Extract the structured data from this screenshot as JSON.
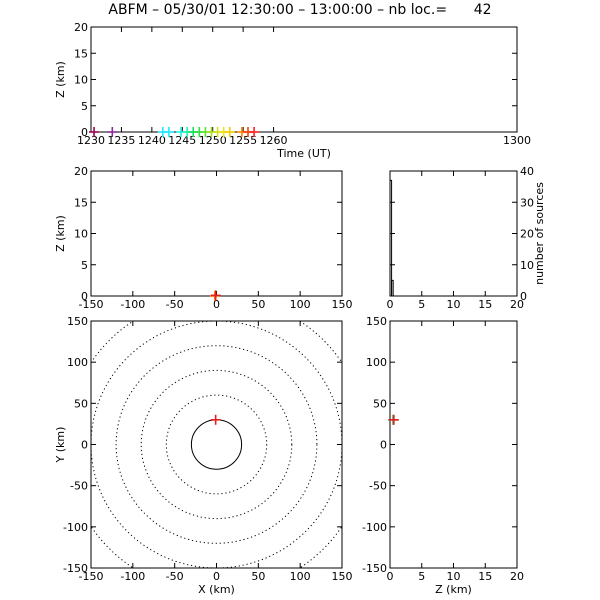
{
  "title": "ABFM – 05/30/01 12:30:00 – 13:00:00 – nb loc.=      42",
  "chart_data": [
    {
      "id": "time_height",
      "type": "scatter",
      "xlabel": "Time (UT)",
      "ylabel": "Z (km)",
      "xlim": [
        1230,
        1300
      ],
      "ylim": [
        0,
        20
      ],
      "xticks": [
        1230,
        1235,
        1240,
        1245,
        1250,
        1255,
        1260,
        1300
      ],
      "xtick_labels": [
        "1230",
        "1235",
        "1240",
        "1245",
        "1250",
        "1255",
        "1260",
        "1300"
      ],
      "yticks": [
        0,
        5,
        10,
        15,
        20
      ],
      "points": [
        {
          "x": 1230.5,
          "y": 0,
          "color": "#a00050"
        },
        {
          "x": 1233.5,
          "y": 0,
          "color": "#8c28a0"
        },
        {
          "x": 1241.8,
          "y": 0,
          "color": "#20e8ff"
        },
        {
          "x": 1242.8,
          "y": 0,
          "color": "#20e8ff"
        },
        {
          "x": 1244.8,
          "y": 0,
          "color": "#20f0e0"
        },
        {
          "x": 1245.8,
          "y": 0,
          "color": "#20f0b0"
        },
        {
          "x": 1246.8,
          "y": 0,
          "color": "#10e060"
        },
        {
          "x": 1247.8,
          "y": 0,
          "color": "#30e040"
        },
        {
          "x": 1248.8,
          "y": 0,
          "color": "#60e030"
        },
        {
          "x": 1249.8,
          "y": 0,
          "color": "#a0e020"
        },
        {
          "x": 1250.8,
          "y": 0,
          "color": "#d0e020"
        },
        {
          "x": 1251.8,
          "y": 0,
          "color": "#f0e010"
        },
        {
          "x": 1252.8,
          "y": 0,
          "color": "#f0d000"
        },
        {
          "x": 1254.8,
          "y": 0,
          "color": "#ff8000"
        },
        {
          "x": 1255.8,
          "y": 0,
          "color": "#ff4000"
        },
        {
          "x": 1256.8,
          "y": 0,
          "color": "#ff2020"
        }
      ]
    },
    {
      "id": "x_height",
      "type": "scatter",
      "xlabel": "",
      "ylabel": "Z (km)",
      "xlim": [
        -150,
        150
      ],
      "ylim": [
        0,
        20
      ],
      "xticks": [
        -150,
        -100,
        -50,
        0,
        50,
        100,
        150
      ],
      "yticks": [
        0,
        5,
        10,
        15,
        20
      ],
      "points": [
        {
          "x": -2,
          "y": 0,
          "color": "#ff8000"
        },
        {
          "x": -1,
          "y": 0.1,
          "color": "#e02020"
        }
      ]
    },
    {
      "id": "height_histogram",
      "type": "bar",
      "xlabel": "",
      "ylabel": "number of sources",
      "xlim": [
        0,
        20
      ],
      "ylim": [
        0,
        40
      ],
      "xticks": [
        0,
        5,
        10,
        15,
        20
      ],
      "yticks": [
        0,
        10,
        20,
        30,
        40
      ],
      "bins": [
        {
          "x0": 0,
          "x1": 0.25,
          "count": 37
        },
        {
          "x0": 0.25,
          "x1": 0.5,
          "count": 5
        },
        {
          "x0": 0.5,
          "x1": 20,
          "count": 0
        }
      ]
    },
    {
      "id": "plan_view",
      "type": "scatter",
      "xlabel": "X (km)",
      "ylabel": "Y (km)",
      "xlim": [
        -150,
        150
      ],
      "ylim": [
        -150,
        150
      ],
      "xticks": [
        -150,
        -100,
        -50,
        0,
        50,
        100,
        150
      ],
      "yticks": [
        -150,
        -100,
        -50,
        0,
        50,
        100,
        150
      ],
      "range_rings_km": [
        30,
        60,
        90,
        120,
        150,
        180
      ],
      "points": [
        {
          "x": -1,
          "y": 30,
          "color": "#e02020"
        }
      ]
    },
    {
      "id": "height_y",
      "type": "scatter",
      "xlabel": "Z (km)",
      "ylabel": "",
      "xlim": [
        0,
        20
      ],
      "ylim": [
        -150,
        150
      ],
      "xticks": [
        0,
        5,
        10,
        15,
        20
      ],
      "yticks": [
        -150,
        -100,
        -50,
        0,
        50,
        100,
        150
      ],
      "points": [
        {
          "x": 0.5,
          "y": 30,
          "color": "#10a030"
        },
        {
          "x": 0.6,
          "y": 30,
          "color": "#e02020"
        }
      ]
    }
  ]
}
